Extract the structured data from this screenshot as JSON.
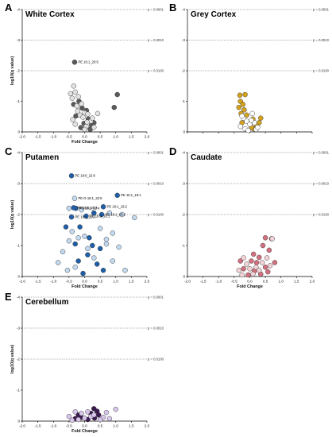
{
  "chart_data": [
    {
      "type": "scatter",
      "letter": "A",
      "title": "White Cortex",
      "xlabel": "Fold Change",
      "ylabel": "log10(q value)",
      "xlim": [
        -2.0,
        2.0
      ],
      "ylim": [
        0,
        -4
      ],
      "xticks": [
        "-2.0",
        "-1.5",
        "-1.0",
        "-0.5",
        "0.0",
        "0.5",
        "1.0",
        "1.5",
        "2.0"
      ],
      "yticks": [
        "0",
        "-1",
        "-2",
        "-3",
        "-4"
      ],
      "thresholds": [
        {
          "y": -4,
          "label": "p = 0.0001"
        },
        {
          "y": -3,
          "label": "p = 0.0010"
        },
        {
          "y": -2,
          "label": "p = 0.0100"
        }
      ],
      "colors": {
        "dark": "#5a5a5a",
        "light": "#e2e2e2"
      },
      "series": [
        {
          "color": "dark",
          "points": [
            [
              -0.32,
              -2.28
            ],
            [
              1.05,
              -1.22
            ],
            [
              0.95,
              -0.8
            ],
            [
              -0.18,
              -1.0
            ],
            [
              -0.08,
              -0.78
            ],
            [
              0.06,
              -0.7
            ],
            [
              -0.28,
              -0.52
            ],
            [
              0.12,
              -0.42
            ],
            [
              -0.02,
              -0.28
            ],
            [
              0.22,
              -0.22
            ],
            [
              -0.12,
              -0.14
            ],
            [
              0.3,
              -0.3
            ],
            [
              0.18,
              -0.08
            ],
            [
              -0.35,
              -0.9
            ]
          ]
        },
        {
          "color": "light",
          "points": [
            [
              -0.35,
              -1.5
            ],
            [
              -0.3,
              -1.3
            ],
            [
              -0.4,
              -1.1
            ],
            [
              -0.2,
              -1.15
            ],
            [
              -0.25,
              -0.85
            ],
            [
              -0.1,
              -0.92
            ],
            [
              0.0,
              -0.62
            ],
            [
              -0.15,
              -0.55
            ],
            [
              -0.38,
              -0.4
            ],
            [
              0.1,
              -0.58
            ],
            [
              0.2,
              -0.35
            ],
            [
              0.05,
              -0.18
            ],
            [
              -0.05,
              -0.48
            ],
            [
              0.3,
              -0.15
            ],
            [
              0.25,
              -0.45
            ],
            [
              -0.3,
              -0.25
            ],
            [
              -0.22,
              -0.68
            ],
            [
              0.08,
              -0.32
            ],
            [
              0.0,
              -0.08
            ],
            [
              -0.45,
              -1.25
            ],
            [
              0.42,
              -0.6
            ]
          ]
        }
      ],
      "annotations": [
        {
          "x": -0.32,
          "y": -2.28,
          "text": "PE 16:1_20:5"
        }
      ]
    },
    {
      "type": "scatter",
      "letter": "B",
      "title": "Grey  Cortex",
      "xlabel": "",
      "ylabel": "",
      "xlim": [
        -2.0,
        2.0
      ],
      "ylim": [
        0,
        -4
      ],
      "xticks": [],
      "yticks": [
        "0",
        "-1",
        "-2",
        "-3",
        "-4"
      ],
      "thresholds": [
        {
          "y": -4,
          "label": "p = 0.0001"
        },
        {
          "y": -3,
          "label": "p = 0.0010"
        },
        {
          "y": -2,
          "label": "p = 0.0100"
        }
      ],
      "colors": {
        "dark": "#d4a21c",
        "light": "#ffffff"
      },
      "series": [
        {
          "color": "dark",
          "points": [
            [
              -0.32,
              -1.2
            ],
            [
              -0.15,
              -1.22
            ],
            [
              -0.3,
              -1.0
            ],
            [
              -0.22,
              -0.9
            ],
            [
              -0.35,
              -0.8
            ],
            [
              -0.18,
              -0.72
            ],
            [
              -0.28,
              -0.6
            ],
            [
              -0.1,
              -0.55
            ],
            [
              0.1,
              -0.42
            ],
            [
              0.3,
              -0.3
            ],
            [
              0.22,
              -0.2
            ],
            [
              0.12,
              -0.1
            ],
            [
              -0.25,
              -0.3
            ],
            [
              0.35,
              -0.45
            ],
            [
              0.05,
              -0.15
            ]
          ]
        },
        {
          "color": "light",
          "points": [
            [
              -0.2,
              -0.45
            ],
            [
              -0.1,
              -0.35
            ],
            [
              0.0,
              -0.25
            ],
            [
              -0.3,
              -0.18
            ],
            [
              0.15,
              -0.3
            ],
            [
              0.05,
              -0.38
            ],
            [
              -0.15,
              -0.1
            ],
            [
              0.2,
              -0.08
            ],
            [
              -0.05,
              -0.05
            ],
            [
              0.25,
              -0.15
            ],
            [
              -0.25,
              -0.52
            ],
            [
              0.08,
              -0.6
            ]
          ]
        }
      ],
      "annotations": []
    },
    {
      "type": "scatter",
      "letter": "C",
      "title": "Putamen",
      "xlabel": "Fold Change",
      "ylabel": "log10(q value)",
      "xlim": [
        -2.0,
        2.0
      ],
      "ylim": [
        0,
        -4
      ],
      "xticks": [
        "-2.0",
        "-1.5",
        "-1.0",
        "-0.5",
        "0.0",
        "0.5",
        "1.0",
        "1.5",
        "2.0"
      ],
      "yticks": [
        "0",
        "-1",
        "-2",
        "-3",
        "-4"
      ],
      "thresholds": [
        {
          "y": -4,
          "label": "p = 0.0001"
        },
        {
          "y": -3,
          "label": "p = 0.0010"
        },
        {
          "y": -2,
          "label": "p = 0.0100"
        }
      ],
      "colors": {
        "dark": "#1f5fa8",
        "light": "#c2d9f0"
      },
      "series": [
        {
          "color": "dark",
          "points": [
            [
              -0.42,
              -3.25
            ],
            [
              1.05,
              -2.62
            ],
            [
              0.6,
              -2.25
            ],
            [
              -0.28,
              -2.2
            ],
            [
              -0.35,
              -2.22
            ],
            [
              0.3,
              -2.05
            ],
            [
              -0.42,
              -1.92
            ],
            [
              0.05,
              -1.95
            ],
            [
              0.55,
              -2.0
            ],
            [
              -0.15,
              -1.6
            ],
            [
              -0.6,
              -1.6
            ],
            [
              0.25,
              -1.0
            ],
            [
              -0.3,
              -1.05
            ],
            [
              0.5,
              -0.9
            ],
            [
              0.1,
              -0.7
            ],
            [
              0.4,
              -0.4
            ],
            [
              -0.2,
              -0.5
            ],
            [
              0.6,
              -0.2
            ],
            [
              -0.05,
              -0.1
            ],
            [
              0.15,
              -1.25
            ]
          ]
        },
        {
          "color": "light",
          "points": [
            [
              -0.32,
              -2.52
            ],
            [
              -0.5,
              -2.2
            ],
            [
              -0.1,
              -2.15
            ],
            [
              0.8,
              -2.05
            ],
            [
              1.2,
              -2.0
            ],
            [
              1.6,
              -1.9
            ],
            [
              -0.4,
              -1.45
            ],
            [
              0.5,
              -1.55
            ],
            [
              0.9,
              -1.4
            ],
            [
              -0.2,
              -1.25
            ],
            [
              -0.5,
              -1.15
            ],
            [
              0.1,
              -0.9
            ],
            [
              0.7,
              -1.05
            ],
            [
              1.1,
              -0.95
            ],
            [
              -0.7,
              -0.8
            ],
            [
              0.3,
              -0.6
            ],
            [
              -0.3,
              -0.3
            ],
            [
              0.9,
              -0.5
            ],
            [
              1.3,
              -0.2
            ],
            [
              -0.55,
              -0.2
            ],
            [
              0.0,
              -1.3
            ],
            [
              0.7,
              -1.2
            ],
            [
              -0.85,
              -0.45
            ]
          ]
        }
      ],
      "annotations": [
        {
          "x": -0.42,
          "y": -3.25,
          "text": "PE 18:0_22:6"
        },
        {
          "x": -0.32,
          "y": -2.52,
          "text": "PE O-18:1_22:6"
        },
        {
          "x": 1.05,
          "y": -2.62,
          "text": "PE 16:1_18:1"
        },
        {
          "x": 0.6,
          "y": -2.25,
          "text": "PE 18:1_18:2"
        },
        {
          "x": -0.35,
          "y": -2.22,
          "text": "PE 18:0_20:4"
        },
        {
          "x": -0.28,
          "y": -2.2,
          "text": "PE 16:0_22:4"
        },
        {
          "x": -0.42,
          "y": -1.92,
          "text": "PE 18:1_22:6"
        },
        {
          "x": 0.05,
          "y": -1.95,
          "text": "PE 16:0_18:1"
        },
        {
          "x": 0.55,
          "y": -2.0,
          "text": "PE 18:1_20:2"
        }
      ]
    },
    {
      "type": "scatter",
      "letter": "D",
      "title": "Caudate",
      "xlabel": "Fold Change",
      "ylabel": "",
      "xlim": [
        -2.0,
        2.0
      ],
      "ylim": [
        0,
        -4
      ],
      "xticks": [
        "-2.0",
        "-1.5",
        "-1.0",
        "-0.5",
        "0.0",
        "0.5",
        "1.0",
        "1.5",
        "2.0"
      ],
      "yticks": [
        "0",
        "-1",
        "-2",
        "-3",
        "-4"
      ],
      "thresholds": [
        {
          "y": -4,
          "label": "p = 0.0001"
        },
        {
          "y": -3,
          "label": "p = 0.0010"
        },
        {
          "y": -2,
          "label": "p = 0.0100"
        }
      ],
      "colors": {
        "dark": "#d4707e",
        "light": "#f2d3d8"
      },
      "series": [
        {
          "color": "dark",
          "points": [
            [
              0.5,
              -1.25
            ],
            [
              0.7,
              -1.22
            ],
            [
              0.42,
              -1.0
            ],
            [
              0.62,
              -0.85
            ],
            [
              0.3,
              -0.62
            ],
            [
              0.22,
              -0.45
            ],
            [
              0.8,
              -0.45
            ],
            [
              -0.3,
              -0.5
            ],
            [
              0.05,
              -0.5
            ],
            [
              0.5,
              -0.3
            ],
            [
              -0.2,
              -0.25
            ],
            [
              0.15,
              -0.18
            ],
            [
              0.35,
              -0.08
            ],
            [
              -0.05,
              -0.05
            ],
            [
              0.12,
              -0.72
            ],
            [
              0.58,
              -0.15
            ]
          ]
        },
        {
          "color": "light",
          "points": [
            [
              0.72,
              -1.22
            ],
            [
              -0.1,
              -0.4
            ],
            [
              0.2,
              -0.3
            ],
            [
              -0.35,
              -0.2
            ],
            [
              0.4,
              -0.45
            ],
            [
              -0.2,
              -0.6
            ],
            [
              0.0,
              -0.25
            ],
            [
              0.3,
              -0.2
            ],
            [
              0.1,
              -0.08
            ],
            [
              -0.25,
              -0.05
            ],
            [
              0.55,
              -0.6
            ],
            [
              0.65,
              -0.35
            ]
          ]
        }
      ],
      "annotations": []
    },
    {
      "type": "scatter",
      "letter": "E",
      "title": "Cerebellum",
      "xlabel": "Fold Change",
      "ylabel": "log10(q value)",
      "xlim": [
        -2.0,
        2.0
      ],
      "ylim": [
        0,
        -4
      ],
      "xticks": [
        "-2.0",
        "-1.5",
        "-1.0",
        "-0.5",
        "0.0",
        "0.5",
        "1.0",
        "1.5",
        "2.0"
      ],
      "yticks": [
        "0",
        "-1",
        "-2",
        "-3",
        "-4"
      ],
      "thresholds": [
        {
          "y": -4,
          "label": "p = 0.0001"
        },
        {
          "y": -3,
          "label": "p = 0.0010"
        },
        {
          "y": -2,
          "label": "p = 0.0100"
        }
      ],
      "colors": {
        "dark": "#3b1850",
        "light": "#d8c6ea"
      },
      "series": [
        {
          "color": "dark",
          "points": [
            [
              0.3,
              -0.4
            ],
            [
              0.4,
              -0.32
            ],
            [
              0.2,
              -0.25
            ],
            [
              -0.1,
              -0.12
            ],
            [
              0.32,
              -0.1
            ],
            [
              -0.3,
              -0.08
            ],
            [
              0.1,
              -0.05
            ],
            [
              0.45,
              -0.2
            ],
            [
              -0.2,
              -0.2
            ]
          ]
        },
        {
          "color": "light",
          "points": [
            [
              1.0,
              -0.38
            ],
            [
              0.7,
              -0.28
            ],
            [
              -0.5,
              -0.15
            ],
            [
              -0.2,
              -0.05
            ],
            [
              0.0,
              -0.1
            ],
            [
              0.6,
              -0.12
            ],
            [
              -0.4,
              -0.03
            ],
            [
              0.2,
              -0.15
            ],
            [
              0.5,
              -0.05
            ],
            [
              -0.1,
              -0.25
            ],
            [
              0.8,
              -0.08
            ],
            [
              0.3,
              -0.2
            ],
            [
              -0.3,
              -0.3
            ],
            [
              0.1,
              -0.3
            ]
          ]
        }
      ],
      "annotations": []
    }
  ]
}
